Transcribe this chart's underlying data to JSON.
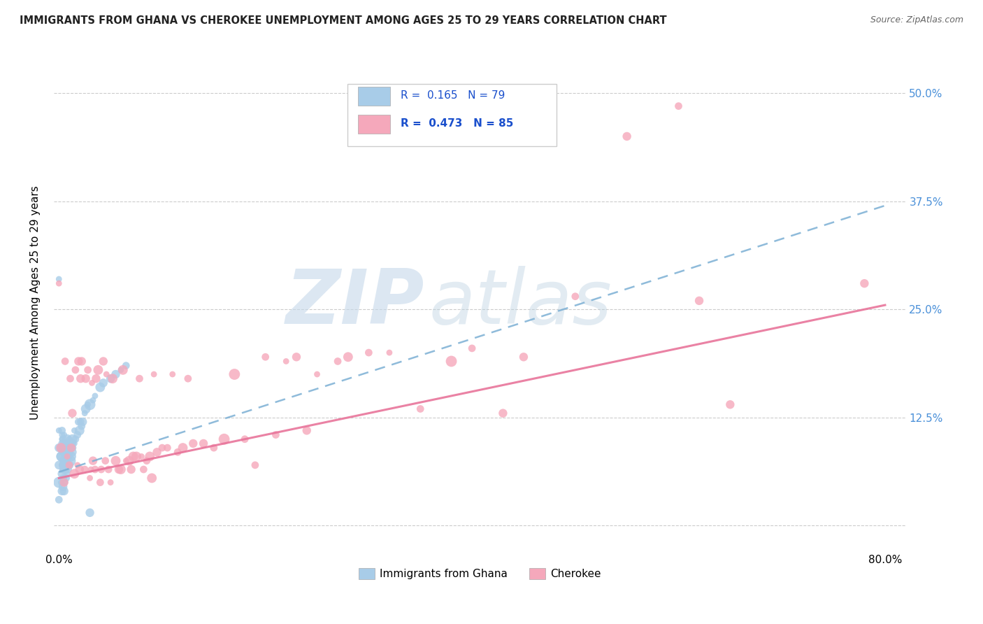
{
  "title": "IMMIGRANTS FROM GHANA VS CHEROKEE UNEMPLOYMENT AMONG AGES 25 TO 29 YEARS CORRELATION CHART",
  "source": "Source: ZipAtlas.com",
  "ylabel": "Unemployment Among Ages 25 to 29 years",
  "xlim": [
    -0.005,
    0.82
  ],
  "ylim": [
    -0.03,
    0.545
  ],
  "xticks": [
    0.0,
    0.1,
    0.2,
    0.3,
    0.4,
    0.5,
    0.6,
    0.7,
    0.8
  ],
  "xticklabels": [
    "0.0%",
    "",
    "",
    "",
    "",
    "",
    "",
    "",
    "80.0%"
  ],
  "yticks": [
    0.0,
    0.125,
    0.25,
    0.375,
    0.5
  ],
  "yticklabels": [
    "",
    "12.5%",
    "25.0%",
    "37.5%",
    "50.0%"
  ],
  "ghana_R": "0.165",
  "ghana_N": "79",
  "cherokee_R": "0.473",
  "cherokee_N": "85",
  "ghana_color": "#a8cce8",
  "cherokee_color": "#f5a8bb",
  "ghana_line_color": "#7bafd4",
  "cherokee_line_color": "#e8749a",
  "ghana_scatter_x": [
    0.0,
    0.0,
    0.0,
    0.0,
    0.0,
    0.0,
    0.002,
    0.002,
    0.003,
    0.003,
    0.003,
    0.003,
    0.003,
    0.003,
    0.003,
    0.003,
    0.003,
    0.004,
    0.004,
    0.004,
    0.004,
    0.004,
    0.004,
    0.004,
    0.004,
    0.005,
    0.005,
    0.005,
    0.005,
    0.005,
    0.005,
    0.005,
    0.006,
    0.006,
    0.006,
    0.006,
    0.007,
    0.007,
    0.007,
    0.007,
    0.008,
    0.008,
    0.008,
    0.008,
    0.009,
    0.009,
    0.009,
    0.01,
    0.01,
    0.01,
    0.011,
    0.011,
    0.012,
    0.012,
    0.013,
    0.013,
    0.014,
    0.015,
    0.015,
    0.016,
    0.018,
    0.019,
    0.02,
    0.021,
    0.022,
    0.023,
    0.025,
    0.026,
    0.028,
    0.03,
    0.03,
    0.033,
    0.035,
    0.04,
    0.043,
    0.05,
    0.055,
    0.06,
    0.065
  ],
  "ghana_scatter_y": [
    0.03,
    0.05,
    0.07,
    0.09,
    0.11,
    0.285,
    0.05,
    0.08,
    0.04,
    0.06,
    0.07,
    0.08,
    0.09,
    0.095,
    0.1,
    0.105,
    0.11,
    0.045,
    0.055,
    0.065,
    0.07,
    0.075,
    0.085,
    0.09,
    0.1,
    0.04,
    0.055,
    0.065,
    0.075,
    0.085,
    0.095,
    0.105,
    0.05,
    0.065,
    0.075,
    0.09,
    0.055,
    0.07,
    0.08,
    0.095,
    0.06,
    0.07,
    0.085,
    0.1,
    0.065,
    0.08,
    0.09,
    0.07,
    0.085,
    0.1,
    0.075,
    0.09,
    0.08,
    0.095,
    0.085,
    0.1,
    0.09,
    0.095,
    0.11,
    0.1,
    0.105,
    0.12,
    0.11,
    0.12,
    0.115,
    0.12,
    0.13,
    0.135,
    0.14,
    0.14,
    0.015,
    0.145,
    0.15,
    0.16,
    0.165,
    0.17,
    0.175,
    0.18,
    0.185
  ],
  "cherokee_scatter_x": [
    0.0,
    0.002,
    0.005,
    0.006,
    0.008,
    0.01,
    0.011,
    0.012,
    0.013,
    0.015,
    0.016,
    0.018,
    0.019,
    0.02,
    0.021,
    0.022,
    0.025,
    0.026,
    0.028,
    0.03,
    0.031,
    0.032,
    0.033,
    0.035,
    0.036,
    0.038,
    0.04,
    0.041,
    0.043,
    0.045,
    0.046,
    0.048,
    0.05,
    0.052,
    0.055,
    0.058,
    0.06,
    0.062,
    0.065,
    0.068,
    0.07,
    0.072,
    0.075,
    0.078,
    0.08,
    0.082,
    0.085,
    0.088,
    0.09,
    0.092,
    0.095,
    0.1,
    0.105,
    0.11,
    0.115,
    0.12,
    0.125,
    0.13,
    0.14,
    0.15,
    0.16,
    0.17,
    0.18,
    0.19,
    0.2,
    0.21,
    0.22,
    0.23,
    0.24,
    0.25,
    0.27,
    0.28,
    0.3,
    0.32,
    0.35,
    0.38,
    0.4,
    0.43,
    0.45,
    0.5,
    0.55,
    0.6,
    0.62,
    0.65,
    0.78
  ],
  "cherokee_scatter_y": [
    0.28,
    0.09,
    0.05,
    0.19,
    0.08,
    0.07,
    0.17,
    0.09,
    0.13,
    0.06,
    0.18,
    0.07,
    0.19,
    0.065,
    0.17,
    0.19,
    0.065,
    0.17,
    0.18,
    0.055,
    0.065,
    0.165,
    0.075,
    0.065,
    0.17,
    0.18,
    0.05,
    0.065,
    0.19,
    0.075,
    0.175,
    0.065,
    0.05,
    0.17,
    0.075,
    0.065,
    0.065,
    0.18,
    0.075,
    0.075,
    0.065,
    0.08,
    0.08,
    0.17,
    0.08,
    0.065,
    0.075,
    0.08,
    0.055,
    0.175,
    0.085,
    0.09,
    0.09,
    0.175,
    0.085,
    0.09,
    0.17,
    0.095,
    0.095,
    0.09,
    0.1,
    0.175,
    0.1,
    0.07,
    0.195,
    0.105,
    0.19,
    0.195,
    0.11,
    0.175,
    0.19,
    0.195,
    0.2,
    0.2,
    0.135,
    0.19,
    0.205,
    0.13,
    0.195,
    0.265,
    0.45,
    0.485,
    0.26,
    0.14,
    0.28
  ],
  "ghana_line_x": [
    0.0,
    0.8
  ],
  "ghana_line_y_start": 0.062,
  "ghana_line_y_end": 0.37,
  "cherokee_line_x": [
    0.0,
    0.8
  ],
  "cherokee_line_y_start": 0.055,
  "cherokee_line_y_end": 0.255
}
